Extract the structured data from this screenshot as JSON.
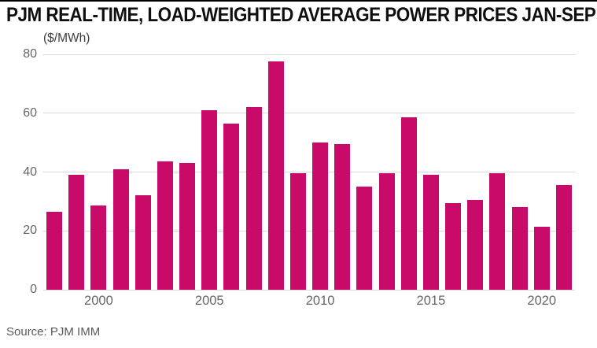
{
  "header": {
    "title": "PJM REAL-TIME, LOAD-WEIGHTED AVERAGE POWER PRICES JAN-SEP",
    "units": "($/MWh)"
  },
  "footer": {
    "source": "Source: PJM IMM"
  },
  "colors": {
    "bar": "#c90a69",
    "grid": "#d9d9d9",
    "axis_label": "#666666",
    "title_text": "#0f0f0f",
    "top_rule": "#000000",
    "source_text": "#595959"
  },
  "chart_data": {
    "type": "bar",
    "title": "PJM REAL-TIME, LOAD-WEIGHTED AVERAGE POWER PRICES JAN-SEP",
    "ylabel": "($/MWh)",
    "xlabel": "",
    "x": [
      1998,
      1999,
      2000,
      2001,
      2002,
      2003,
      2004,
      2005,
      2006,
      2007,
      2008,
      2009,
      2010,
      2011,
      2012,
      2013,
      2014,
      2015,
      2016,
      2017,
      2018,
      2019,
      2020,
      2021
    ],
    "values": [
      26.5,
      39,
      28.5,
      41,
      32,
      43.5,
      43,
      61,
      56.5,
      62,
      77.5,
      39.5,
      50,
      49.5,
      35,
      39.5,
      58.5,
      39,
      29.5,
      30.5,
      39.5,
      28,
      21.5,
      35.5
    ],
    "x_ticks": [
      2000,
      2005,
      2010,
      2015,
      2020
    ],
    "y_ticks": [
      0,
      20,
      40,
      60,
      80
    ],
    "ylim": [
      0,
      80
    ],
    "grid": true,
    "legend_position": "none",
    "source": "Source: PJM IMM"
  }
}
